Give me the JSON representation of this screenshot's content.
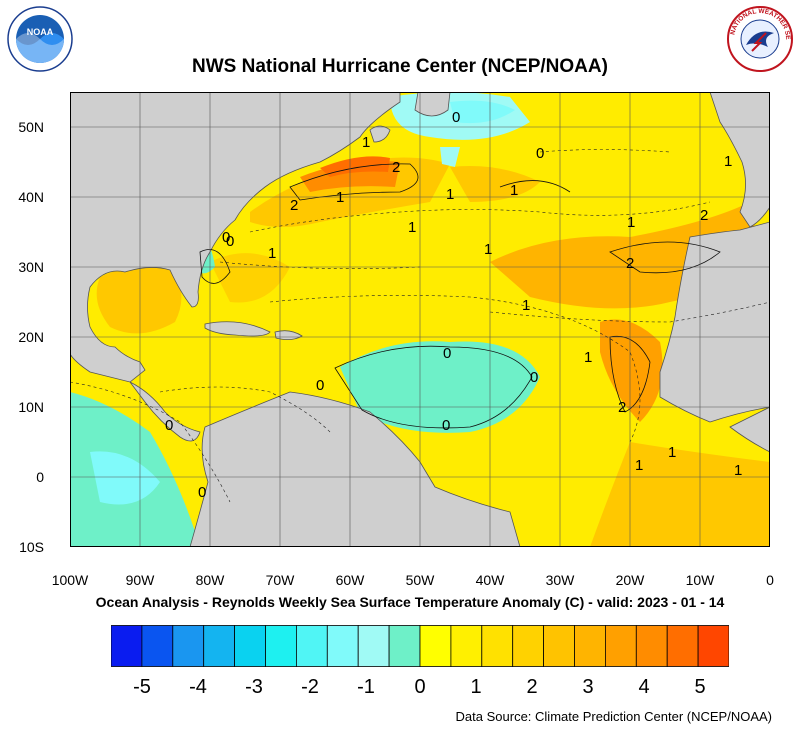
{
  "header": {
    "title": "NWS National Hurricane Center (NCEP/NOAA)",
    "noaa_logo_text": "NOAA",
    "nws_logo_text": "NATIONAL WEATHER SERVICE"
  },
  "map": {
    "lon_ticks": [
      "100W",
      "90W",
      "80W",
      "70W",
      "60W",
      "50W",
      "40W",
      "30W",
      "20W",
      "10W",
      "0"
    ],
    "lat_ticks": [
      "50N",
      "40N",
      "30N",
      "20N",
      "10N",
      "0",
      "10S"
    ],
    "lon_range": [
      -100,
      0
    ],
    "lat_range": [
      -10,
      55
    ],
    "land_color": "#cfcfcf",
    "contour_labels": [
      "0",
      "2",
      "1",
      "0",
      "2",
      "1",
      "1",
      "1",
      "0",
      "1",
      "0",
      "1",
      "1",
      "1",
      "2",
      "2",
      "1",
      "1",
      "0",
      "0",
      "0",
      "1",
      "0",
      "2",
      "1",
      "1",
      "1",
      "0",
      "0"
    ]
  },
  "subtitle": "Ocean Analysis - Reynolds Weekly Sea Surface Temperature Anomaly (C) - valid: 2023 - 01 - 14",
  "colorbar": {
    "labels": [
      "-5",
      "-4",
      "-3",
      "-2",
      "-1",
      "0",
      "1",
      "2",
      "3",
      "4",
      "5"
    ],
    "colors": [
      "#0a1cf0",
      "#0a55f0",
      "#1a96f0",
      "#14b4f0",
      "#0ad2f0",
      "#1ef0f0",
      "#50f5f5",
      "#80fafa",
      "#a0faf5",
      "#6ef0c8",
      "#ffff00",
      "#fff000",
      "#ffe100",
      "#ffd200",
      "#ffc300",
      "#ffb400",
      "#ffa000",
      "#ff8c00",
      "#ff6e00",
      "#ff4600"
    ]
  },
  "footer": {
    "source": "Data Source: Climate Prediction Center (NCEP/NOAA)"
  }
}
